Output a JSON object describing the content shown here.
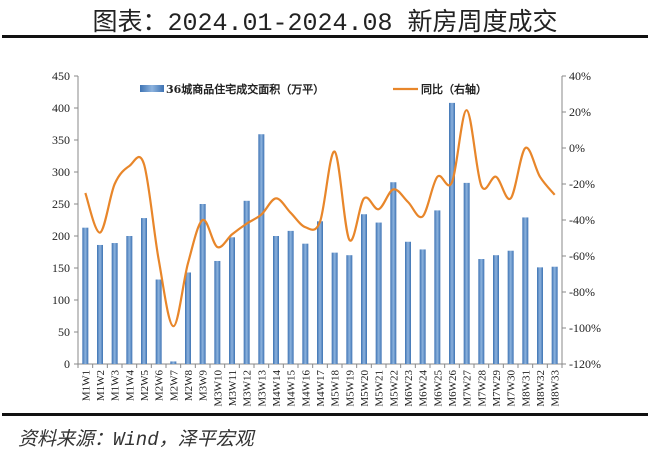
{
  "title": "图表：2024.01-2024.08 新房周度成交",
  "source": "资料来源：Wind，泽平宏观",
  "chart_data": {
    "type": "bar+line",
    "categories": [
      "M1W1",
      "M1W2",
      "M1W3",
      "M1W4",
      "M2W5",
      "M2W6",
      "M2W7",
      "M2W8",
      "M3W9",
      "M3W10",
      "M3W11",
      "M3W12",
      "M3W13",
      "M4W14",
      "M4W15",
      "M4W16",
      "M4W17",
      "M5W18",
      "M5W19",
      "M5W20",
      "M5W21",
      "M5W22",
      "M6W23",
      "M6W24",
      "M6W25",
      "M6W26",
      "M7W27",
      "M7W28",
      "M7W29",
      "M7W30",
      "M8W31",
      "M8W32",
      "M8W33"
    ],
    "series": [
      {
        "name": "36城商品住宅成交面积（万平）",
        "type": "bar",
        "axis": "left",
        "color": "#4f86c6",
        "values": [
          213,
          186,
          189,
          200,
          228,
          132,
          4,
          143,
          250,
          161,
          198,
          255,
          359,
          200,
          208,
          188,
          223,
          174,
          170,
          234,
          221,
          284,
          191,
          179,
          240,
          408,
          283,
          164,
          170,
          177,
          229,
          151,
          152
        ]
      },
      {
        "name": "同比（右轴）",
        "type": "line",
        "axis": "right",
        "color": "#e8862a",
        "unit": "%",
        "values": [
          -25,
          -47,
          -20,
          -10,
          -9,
          -62,
          -99,
          -64,
          -40,
          -55,
          -48,
          -42,
          -37,
          -28,
          -36,
          -44,
          -41,
          -2,
          -51,
          -28,
          -34,
          -23,
          -30,
          -38,
          -16,
          -19,
          21,
          -21,
          -16,
          -28,
          0,
          -16,
          -26
        ]
      }
    ],
    "left_axis": {
      "min": 0,
      "max": 450,
      "step": 50,
      "ticks": [
        "0",
        "50",
        "100",
        "150",
        "200",
        "250",
        "300",
        "350",
        "400",
        "450"
      ]
    },
    "right_axis": {
      "min": -120,
      "max": 40,
      "step": 20,
      "ticks": [
        "-120%",
        "-100%",
        "-80%",
        "-60%",
        "-40%",
        "-20%",
        "0%",
        "20%",
        "40%"
      ]
    },
    "grid": false,
    "legend_position": "top"
  }
}
